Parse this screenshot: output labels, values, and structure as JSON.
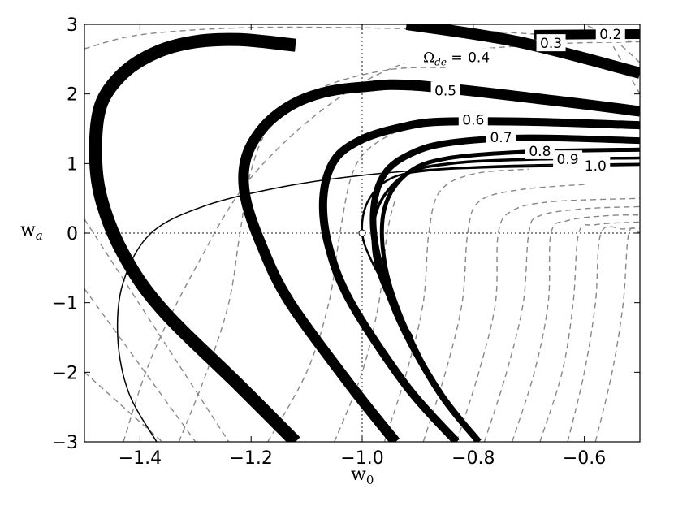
{
  "chart_data": {
    "type": "line",
    "xlabel": "w",
    "xlabel_sub": "0",
    "ylabel": "w",
    "ylabel_sub": "a",
    "xlim": [
      -1.5,
      -0.5
    ],
    "ylim": [
      -3,
      3
    ],
    "x_ticks": [
      -1.4,
      -1.2,
      -1.0,
      -0.8,
      -0.6
    ],
    "x_tick_labels": [
      "−1.4",
      "−1.2",
      "−1.0",
      "−0.8",
      "−0.6"
    ],
    "y_ticks": [
      -3,
      -2,
      -1,
      0,
      1,
      2,
      3
    ],
    "y_tick_labels": [
      "−3",
      "−2",
      "−1",
      "0",
      "1",
      "2",
      "3"
    ],
    "reference_lines": {
      "x": -1.0,
      "y": 0,
      "style": "dotted"
    },
    "marker": {
      "x": -1.0,
      "y": 0,
      "shape": "circle",
      "fill": "#ffffff"
    },
    "omega_label": {
      "symbol": "Ω",
      "sub": "de",
      "suffix": " = "
    },
    "series_thick": [
      {
        "label": "0.2",
        "x": [
          -0.69,
          -0.5
        ],
        "y": [
          2.85,
          2.86
        ]
      },
      {
        "label": "0.3",
        "x": [
          -0.92,
          -0.72,
          -0.5
        ],
        "y": [
          3.0,
          2.75,
          2.3
        ]
      },
      {
        "label": "0.4",
        "x": [
          -1.12,
          -1.22,
          -1.36,
          -1.43,
          -1.47,
          -1.48,
          -1.47,
          -1.43,
          -1.37,
          -1.3,
          -1.22,
          -1.12
        ],
        "y": [
          -3.0,
          -2.2,
          -1.1,
          -0.3,
          0.5,
          1.2,
          1.85,
          2.3,
          2.6,
          2.75,
          2.78,
          2.7
        ]
      },
      {
        "label": "0.5",
        "x": [
          -0.94,
          -1.02,
          -1.13,
          -1.18,
          -1.21,
          -1.21,
          -1.18,
          -1.13,
          -1.07,
          -1.0,
          -0.9,
          -0.65,
          -0.5
        ],
        "y": [
          -3.0,
          -2.2,
          -1.0,
          -0.2,
          0.5,
          1.05,
          1.5,
          1.83,
          2.02,
          2.1,
          2.12,
          1.9,
          1.75
        ]
      },
      {
        "label": "0.6",
        "x": [
          -0.83,
          -0.92,
          -1.02,
          -1.06,
          -1.07,
          -1.05,
          -1.0,
          -0.93,
          -0.86,
          -0.7,
          -0.5
        ],
        "y": [
          -3.0,
          -2.2,
          -1.0,
          -0.2,
          0.5,
          1.05,
          1.35,
          1.52,
          1.6,
          1.6,
          1.55
        ]
      },
      {
        "label": "0.7",
        "x": [
          -0.79,
          -0.86,
          -0.93,
          -0.97,
          -0.98,
          -0.96,
          -0.91,
          -0.84,
          -0.7,
          -0.5
        ],
        "y": [
          -3.0,
          -2.3,
          -1.3,
          -0.4,
          0.3,
          0.85,
          1.15,
          1.3,
          1.37,
          1.33
        ]
      },
      {
        "label": "0.8",
        "x": [
          -0.87,
          -0.93,
          -0.96,
          -0.96,
          -0.92,
          -0.85,
          -0.7,
          -0.5
        ],
        "y": [
          -2.2,
          -1.2,
          -0.4,
          0.35,
          0.85,
          1.07,
          1.17,
          1.2
        ]
      },
      {
        "label": "0.9",
        "x": [
          -0.91,
          -0.96,
          -0.98,
          -0.97,
          -0.92,
          -0.84,
          -0.7,
          -0.5
        ],
        "y": [
          -1.5,
          -0.8,
          -0.2,
          0.4,
          0.85,
          1.0,
          1.06,
          1.08
        ]
      },
      {
        "label": "1.0",
        "x": [
          -0.94,
          -0.98,
          -1.0,
          -0.99,
          -0.95,
          -0.88,
          -0.75,
          -0.5
        ],
        "y": [
          -1.0,
          -0.45,
          0.0,
          0.45,
          0.78,
          0.9,
          0.95,
          0.98
        ]
      }
    ],
    "series_thin": [
      {
        "x": [
          -1.37,
          -1.42,
          -1.44,
          -1.43,
          -1.38,
          -1.28,
          -1.14,
          -1.0,
          -0.85,
          -0.7,
          -0.5
        ],
        "y": [
          -3.0,
          -2.3,
          -1.5,
          -0.7,
          0.0,
          0.4,
          0.67,
          0.83,
          0.93,
          0.98,
          1.0
        ]
      }
    ],
    "series_dashed": [
      {
        "x": [
          -1.5,
          -1.4,
          -1.22,
          -1.0,
          -0.78,
          -0.62,
          -0.5
        ],
        "y": [
          2.65,
          2.85,
          2.95,
          2.95,
          2.9,
          2.82,
          2.75
        ]
      },
      {
        "x": [
          -1.43,
          -1.38,
          -1.3,
          -1.2,
          -1.05,
          -0.9,
          -0.7,
          -0.5
        ],
        "y": [
          -3.0,
          -1.8,
          -0.5,
          0.8,
          1.9,
          2.5,
          2.7,
          2.75
        ]
      },
      {
        "x": [
          -1.33,
          -1.28,
          -1.24,
          -1.22,
          -1.2,
          -1.16,
          -1.07,
          -0.95,
          -0.85
        ],
        "y": [
          -3.0,
          -2.0,
          -1.0,
          0.0,
          0.9,
          1.6,
          2.1,
          2.35,
          2.38
        ]
      },
      {
        "x": [
          -1.17,
          -1.1,
          -1.06,
          -1.04,
          -1.02,
          -0.99,
          -0.93
        ],
        "y": [
          -3.0,
          -2.0,
          -1.0,
          0.0,
          0.8,
          1.2,
          1.5
        ]
      },
      {
        "x": [
          -1.05,
          -1.0,
          -0.97,
          -0.955,
          -0.94
        ],
        "y": [
          -3.0,
          -2.0,
          -1.0,
          0.0,
          0.5
        ]
      },
      {
        "x": [
          -0.96,
          -0.92,
          -0.89,
          -0.88,
          -0.86,
          -0.8,
          -0.7
        ],
        "y": [
          -3.0,
          -2.0,
          -1.0,
          0.0,
          0.6,
          0.85,
          0.92
        ]
      },
      {
        "x": [
          -0.89,
          -0.85,
          -0.82,
          -0.81,
          -0.79,
          -0.72,
          -0.6
        ],
        "y": [
          -3.0,
          -2.0,
          -1.0,
          0.0,
          0.45,
          0.62,
          0.7
        ]
      },
      {
        "x": [
          -0.83,
          -0.79,
          -0.76,
          -0.755,
          -0.73,
          -0.66,
          -0.5
        ],
        "y": [
          -3.0,
          -2.0,
          -1.0,
          0.0,
          0.32,
          0.45,
          0.5
        ]
      },
      {
        "x": [
          -0.78,
          -0.74,
          -0.71,
          -0.7,
          -0.68,
          -0.6,
          -0.5
        ],
        "y": [
          -3.0,
          -2.0,
          -1.0,
          0.0,
          0.25,
          0.35,
          0.38
        ]
      },
      {
        "x": [
          -0.73,
          -0.69,
          -0.665,
          -0.66,
          -0.63,
          -0.56,
          -0.5
        ],
        "y": [
          -3.0,
          -2.0,
          -1.0,
          0.0,
          0.18,
          0.25,
          0.26
        ]
      },
      {
        "x": [
          -0.68,
          -0.64,
          -0.62,
          -0.61,
          -0.58,
          -0.5
        ],
        "y": [
          -3.0,
          -2.0,
          -1.0,
          0.0,
          0.12,
          0.16
        ]
      },
      {
        "x": [
          -0.63,
          -0.6,
          -0.58,
          -0.57,
          -0.53,
          -0.5
        ],
        "y": [
          -3.0,
          -2.0,
          -1.0,
          0.0,
          0.06,
          0.07
        ]
      },
      {
        "x": [
          -0.58,
          -0.55,
          -0.53,
          -0.52,
          -0.5
        ],
        "y": [
          -3.0,
          -2.0,
          -1.0,
          0.0,
          0.0
        ]
      },
      {
        "x": [
          -1.5,
          -1.3
        ],
        "y": [
          -0.8,
          -3.0
        ]
      },
      {
        "x": [
          -1.5,
          -1.36
        ],
        "y": [
          -2.0,
          -3.0
        ]
      },
      {
        "x": [
          -1.5,
          -1.24
        ],
        "y": [
          0.2,
          -3.0
        ]
      },
      {
        "x": [
          -0.5,
          -0.55,
          -0.6
        ],
        "y": [
          2.45,
          2.8,
          3.0
        ]
      },
      {
        "x": [
          -0.5,
          -0.57
        ],
        "y": [
          2.0,
          3.0
        ]
      }
    ]
  }
}
